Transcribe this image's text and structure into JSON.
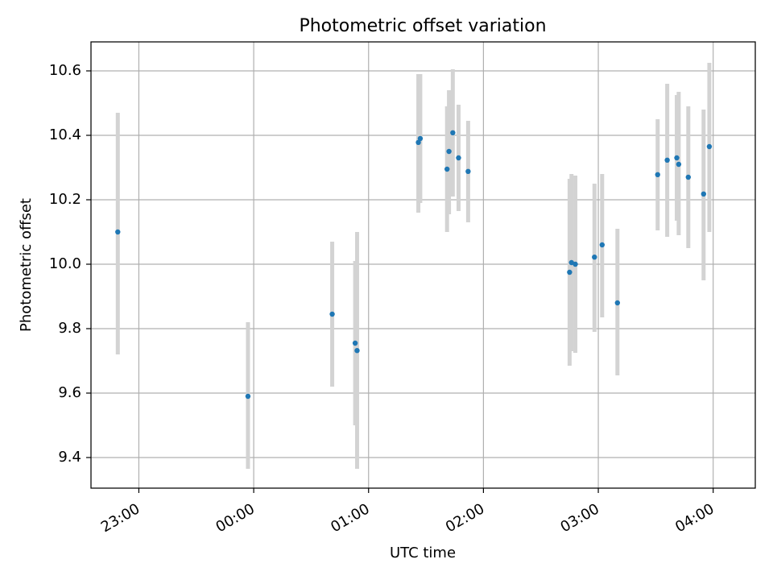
{
  "chart_data": {
    "type": "scatter",
    "title": "Photometric offset variation",
    "xlabel": "UTC time",
    "ylabel": "Photometric offset",
    "x_tick_labels": [
      "23:00",
      "00:00",
      "01:00",
      "02:00",
      "03:00",
      "04:00"
    ],
    "y_tick_labels": [
      "9.4",
      "9.6",
      "9.8",
      "10.0",
      "10.2",
      "10.4",
      "10.6"
    ],
    "y_ticks": [
      9.4,
      9.6,
      9.8,
      10.0,
      10.2,
      10.4,
      10.6
    ],
    "xlim": [
      "22:35",
      "04:22"
    ],
    "ylim": [
      9.305,
      10.69
    ],
    "grid": true,
    "colors": {
      "marker": "#1f77b4",
      "errorbar": "#d3d3d3",
      "grid": "#b0b0b0",
      "axes": "#000000"
    },
    "series": [
      {
        "points": [
          {
            "x": "22:49",
            "y": 10.1,
            "ylo": 9.72,
            "yhi": 10.47
          },
          {
            "x": "23:57",
            "y": 9.59,
            "ylo": 9.365,
            "yhi": 9.82
          },
          {
            "x": "00:41",
            "y": 9.845,
            "ylo": 9.62,
            "yhi": 10.07
          },
          {
            "x": "00:53",
            "y": 9.755,
            "ylo": 9.5,
            "yhi": 10.01
          },
          {
            "x": "00:54",
            "y": 9.732,
            "ylo": 9.365,
            "yhi": 10.1
          },
          {
            "x": "01:26",
            "y": 10.378,
            "ylo": 10.16,
            "yhi": 10.59
          },
          {
            "x": "01:27",
            "y": 10.39,
            "ylo": 10.19,
            "yhi": 10.59
          },
          {
            "x": "01:41",
            "y": 10.295,
            "ylo": 10.1,
            "yhi": 10.49
          },
          {
            "x": "01:42",
            "y": 10.35,
            "ylo": 10.155,
            "yhi": 10.54
          },
          {
            "x": "01:44",
            "y": 10.408,
            "ylo": 10.21,
            "yhi": 10.605
          },
          {
            "x": "01:47",
            "y": 10.33,
            "ylo": 10.165,
            "yhi": 10.495
          },
          {
            "x": "01:52",
            "y": 10.288,
            "ylo": 10.13,
            "yhi": 10.445
          },
          {
            "x": "02:45",
            "y": 9.975,
            "ylo": 9.685,
            "yhi": 10.265
          },
          {
            "x": "02:46",
            "y": 10.005,
            "ylo": 9.73,
            "yhi": 10.28
          },
          {
            "x": "02:48",
            "y": 10.0,
            "ylo": 9.725,
            "yhi": 10.275
          },
          {
            "x": "02:58",
            "y": 10.022,
            "ylo": 9.79,
            "yhi": 10.25
          },
          {
            "x": "03:02",
            "y": 10.06,
            "ylo": 9.835,
            "yhi": 10.28
          },
          {
            "x": "03:10",
            "y": 9.88,
            "ylo": 9.655,
            "yhi": 10.11
          },
          {
            "x": "03:31",
            "y": 10.278,
            "ylo": 10.105,
            "yhi": 10.45
          },
          {
            "x": "03:36",
            "y": 10.323,
            "ylo": 10.085,
            "yhi": 10.56
          },
          {
            "x": "03:41",
            "y": 10.33,
            "ylo": 10.135,
            "yhi": 10.525
          },
          {
            "x": "03:42",
            "y": 10.31,
            "ylo": 10.09,
            "yhi": 10.535
          },
          {
            "x": "03:47",
            "y": 10.27,
            "ylo": 10.05,
            "yhi": 10.49
          },
          {
            "x": "03:55",
            "y": 10.218,
            "ylo": 9.95,
            "yhi": 10.48
          },
          {
            "x": "03:58",
            "y": 10.365,
            "ylo": 10.1,
            "yhi": 10.625
          }
        ]
      }
    ]
  }
}
